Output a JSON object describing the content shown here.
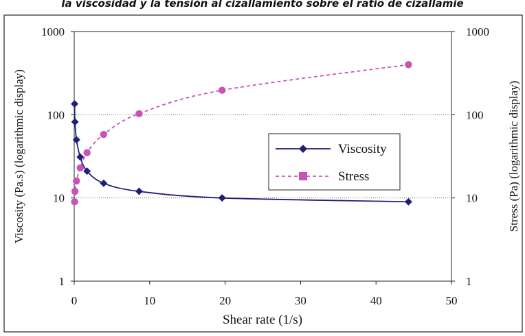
{
  "header": {
    "caption": "la viscosidad y la tensión al cizallamiento sobre el ratio de cizallamie"
  },
  "chart_data": {
    "type": "line",
    "xlabel": "Shear rate (1/s)",
    "ylabel_left": "Viscosity (Pa.s) (logarithmic display)",
    "ylabel_right": "Stress (Pa) (logarithmic display)",
    "xlim": [
      0,
      50
    ],
    "ylim": [
      1,
      1000
    ],
    "yscale": "log",
    "x_ticks": [
      "0",
      "10",
      "20",
      "30",
      "40",
      "50"
    ],
    "y_ticks_left": [
      "1",
      "10",
      "100",
      "1000"
    ],
    "y_ticks_right": [
      "1",
      "10",
      "100",
      "1000"
    ],
    "grid": "horizontal dotted at 10 and 100",
    "legend_position": "center-right",
    "series": [
      {
        "name": "Viscosity",
        "color": "#1f1f7a",
        "marker": "diamond",
        "line": "solid",
        "x": [
          0.05,
          0.1,
          0.3,
          0.8,
          1.7,
          3.9,
          8.6,
          19.6,
          44.3
        ],
        "y": [
          135,
          82,
          50,
          31,
          21,
          15,
          12,
          10,
          9
        ]
      },
      {
        "name": "Stress",
        "color": "#c953b5",
        "marker": "circle",
        "line": "dashed",
        "x": [
          0.05,
          0.1,
          0.3,
          0.8,
          1.7,
          3.9,
          8.6,
          19.6,
          44.3
        ],
        "y": [
          9,
          12,
          16,
          23,
          35,
          58,
          103,
          197,
          400
        ]
      }
    ]
  }
}
